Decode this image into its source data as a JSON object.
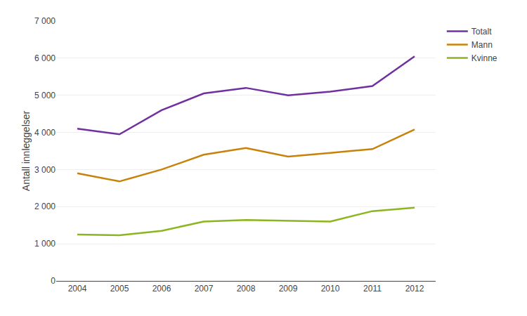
{
  "chart_data": {
    "type": "line",
    "x": [
      2004,
      2005,
      2006,
      2007,
      2008,
      2009,
      2010,
      2011,
      2012
    ],
    "series": [
      {
        "name": "Totalt",
        "color": "#7030a0",
        "values": [
          4100,
          3950,
          4600,
          5050,
          5200,
          5000,
          5100,
          5250,
          6050
        ]
      },
      {
        "name": "Mann",
        "color": "#c8820a",
        "values": [
          2900,
          2680,
          3000,
          3400,
          3580,
          3350,
          3450,
          3550,
          4080
        ]
      },
      {
        "name": "Kvinne",
        "color": "#8db520",
        "values": [
          1250,
          1230,
          1350,
          1600,
          1640,
          1620,
          1600,
          1880,
          1970
        ]
      }
    ],
    "ylabel": "Antall innleggelser",
    "xlim": [
      2003.5,
      2012.5
    ],
    "xticks": [
      2004,
      2005,
      2006,
      2007,
      2008,
      2009,
      2010,
      2011,
      2012
    ],
    "ylim": [
      0,
      7000
    ],
    "yticks": [
      0,
      {
        "value": 1000,
        "label": "1 000"
      },
      {
        "value": 2000,
        "label": "2 000"
      },
      {
        "value": 3000,
        "label": "3 000"
      },
      {
        "value": 4000,
        "label": "4 000"
      },
      {
        "value": 5000,
        "label": "5 000"
      },
      {
        "value": 6000,
        "label": "6 000"
      },
      {
        "value": 7000,
        "label": "7 000"
      }
    ],
    "grid": true,
    "legend": "right"
  }
}
